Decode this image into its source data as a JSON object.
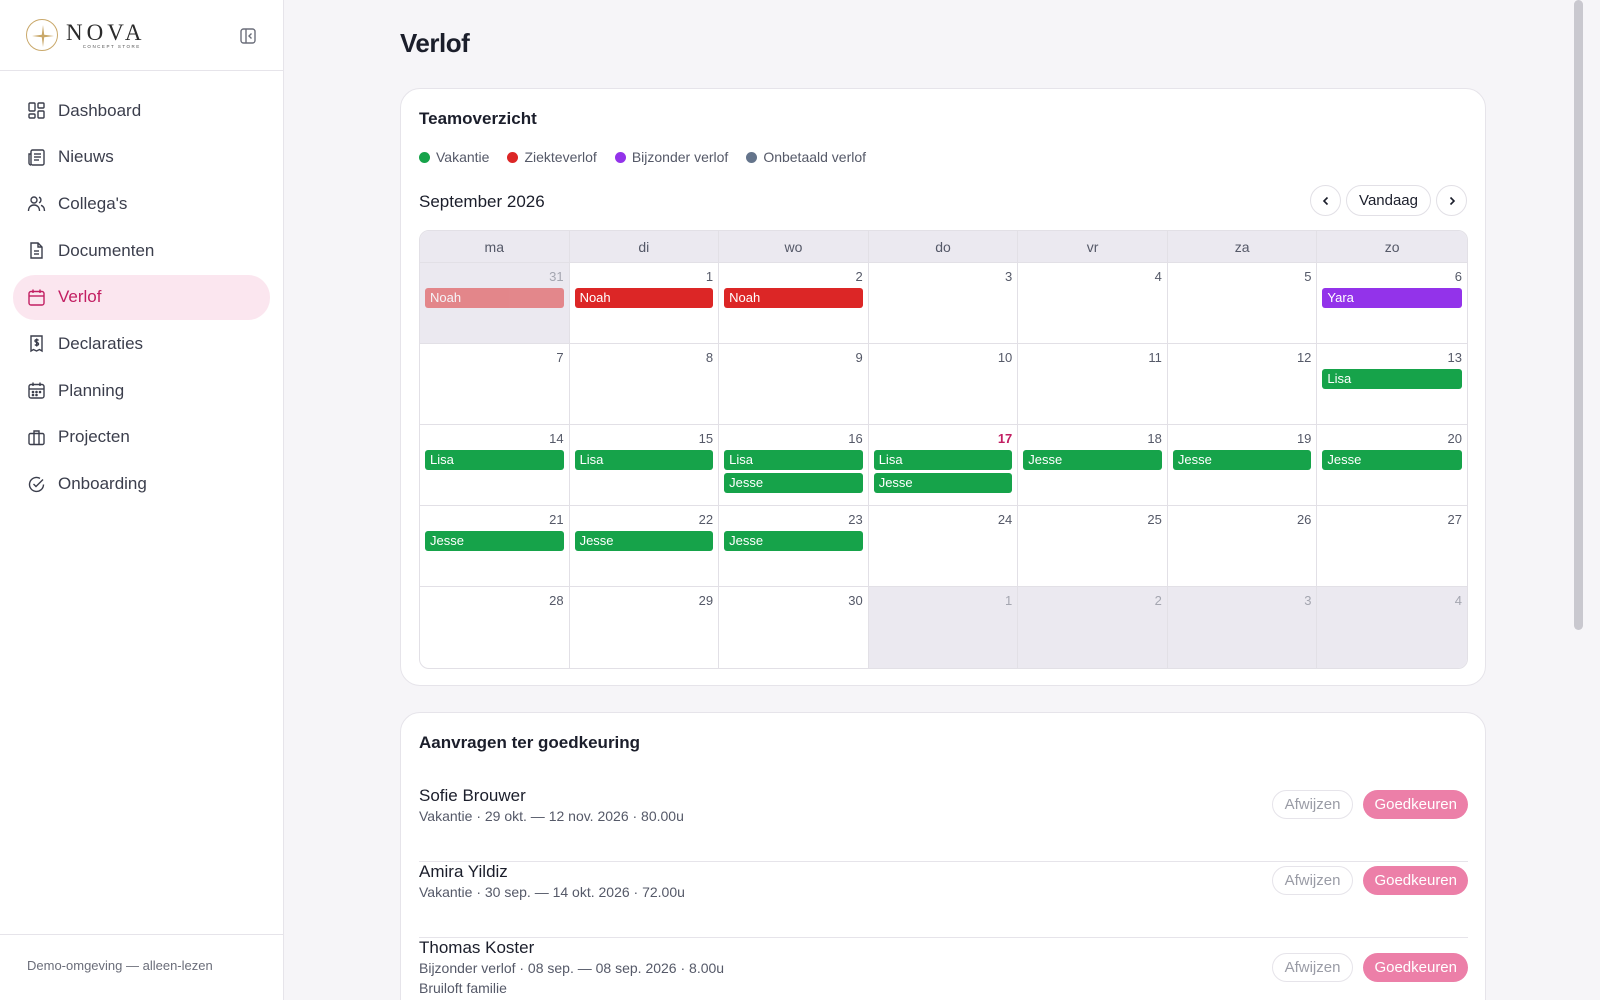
{
  "brand": {
    "name": "NOVA",
    "tagline": "CONCEPT STORE"
  },
  "sidebar": {
    "items": [
      {
        "label": "Dashboard",
        "icon": "dashboard-icon"
      },
      {
        "label": "Nieuws",
        "icon": "newspaper-icon"
      },
      {
        "label": "Collega's",
        "icon": "users-icon"
      },
      {
        "label": "Documenten",
        "icon": "document-icon"
      },
      {
        "label": "Verlof",
        "icon": "calendar-icon",
        "active": true
      },
      {
        "label": "Declaraties",
        "icon": "receipt-icon"
      },
      {
        "label": "Planning",
        "icon": "planning-icon"
      },
      {
        "label": "Projecten",
        "icon": "briefcase-icon"
      },
      {
        "label": "Onboarding",
        "icon": "check-circle-icon"
      }
    ],
    "footer": "Demo-omgeving — alleen-lezen"
  },
  "page": {
    "title": "Verlof"
  },
  "calendar_card": {
    "title": "Teamoverzicht",
    "legend": [
      {
        "label": "Vakantie",
        "color": "#16a34a"
      },
      {
        "label": "Ziekteverlof",
        "color": "#dc2626"
      },
      {
        "label": "Bijzonder verlof",
        "color": "#9333ea"
      },
      {
        "label": "Onbetaald verlof",
        "color": "#64748b"
      }
    ],
    "month_label": "September 2026",
    "today_label": "Vandaag",
    "weekdays": [
      "ma",
      "di",
      "wo",
      "do",
      "vr",
      "za",
      "zo"
    ],
    "days": [
      {
        "num": "31",
        "other": true,
        "events": [
          {
            "name": "Noah",
            "type": 1,
            "faded": true
          }
        ]
      },
      {
        "num": "1",
        "events": [
          {
            "name": "Noah",
            "type": 1
          }
        ]
      },
      {
        "num": "2",
        "events": [
          {
            "name": "Noah",
            "type": 1
          }
        ]
      },
      {
        "num": "3",
        "events": []
      },
      {
        "num": "4",
        "events": []
      },
      {
        "num": "5",
        "events": []
      },
      {
        "num": "6",
        "events": [
          {
            "name": "Yara",
            "type": 2
          }
        ]
      },
      {
        "num": "7",
        "events": []
      },
      {
        "num": "8",
        "events": []
      },
      {
        "num": "9",
        "events": []
      },
      {
        "num": "10",
        "events": []
      },
      {
        "num": "11",
        "events": []
      },
      {
        "num": "12",
        "events": []
      },
      {
        "num": "13",
        "events": [
          {
            "name": "Lisa",
            "type": 0
          }
        ]
      },
      {
        "num": "14",
        "events": [
          {
            "name": "Lisa",
            "type": 0
          }
        ]
      },
      {
        "num": "15",
        "events": [
          {
            "name": "Lisa",
            "type": 0
          }
        ]
      },
      {
        "num": "16",
        "events": [
          {
            "name": "Lisa",
            "type": 0
          },
          {
            "name": "Jesse",
            "type": 0
          }
        ]
      },
      {
        "num": "17",
        "today": true,
        "events": [
          {
            "name": "Lisa",
            "type": 0
          },
          {
            "name": "Jesse",
            "type": 0
          }
        ]
      },
      {
        "num": "18",
        "events": [
          {
            "name": "Jesse",
            "type": 0
          }
        ]
      },
      {
        "num": "19",
        "events": [
          {
            "name": "Jesse",
            "type": 0
          }
        ]
      },
      {
        "num": "20",
        "events": [
          {
            "name": "Jesse",
            "type": 0
          }
        ]
      },
      {
        "num": "21",
        "events": [
          {
            "name": "Jesse",
            "type": 0
          }
        ]
      },
      {
        "num": "22",
        "events": [
          {
            "name": "Jesse",
            "type": 0
          }
        ]
      },
      {
        "num": "23",
        "events": [
          {
            "name": "Jesse",
            "type": 0
          }
        ]
      },
      {
        "num": "24",
        "events": []
      },
      {
        "num": "25",
        "events": []
      },
      {
        "num": "26",
        "events": []
      },
      {
        "num": "27",
        "events": []
      },
      {
        "num": "28",
        "events": []
      },
      {
        "num": "29",
        "events": []
      },
      {
        "num": "30",
        "events": []
      },
      {
        "num": "1",
        "other": true,
        "events": []
      },
      {
        "num": "2",
        "other": true,
        "events": []
      },
      {
        "num": "3",
        "other": true,
        "events": []
      },
      {
        "num": "4",
        "other": true,
        "events": []
      }
    ]
  },
  "requests_card": {
    "title": "Aanvragen ter goedkeuring",
    "reject_label": "Afwijzen",
    "approve_label": "Goedkeuren",
    "items": [
      {
        "name": "Sofie Brouwer",
        "meta": "Vakantie · 29 okt. — 12 nov. 2026 · 80.00u",
        "note": ""
      },
      {
        "name": "Amira Yildiz",
        "meta": "Vakantie · 30 sep. — 14 okt. 2026 · 72.00u",
        "note": ""
      },
      {
        "name": "Thomas Koster",
        "meta": "Bijzonder verlof · 08 sep. — 08 sep. 2026 · 8.00u",
        "note": "Bruiloft familie"
      }
    ]
  }
}
